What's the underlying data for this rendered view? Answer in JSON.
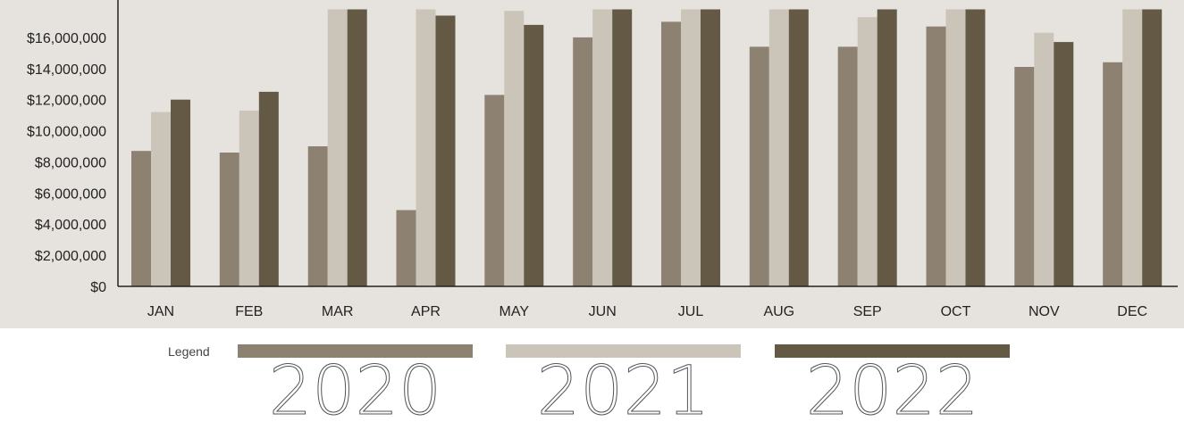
{
  "chart_data": {
    "type": "bar",
    "categories": [
      "JAN",
      "FEB",
      "MAR",
      "APR",
      "MAY",
      "JUN",
      "JUL",
      "AUG",
      "SEP",
      "OCT",
      "NOV",
      "DEC"
    ],
    "series": [
      {
        "name": "2020",
        "color": "#8d8271",
        "values": [
          8700000,
          8600000,
          9000000,
          4900000,
          12300000,
          16000000,
          17000000,
          15400000,
          15400000,
          16700000,
          14100000,
          14400000
        ]
      },
      {
        "name": "2021",
        "color": "#cbc4b9",
        "values": [
          11200000,
          11300000,
          17800000,
          17800000,
          17700000,
          17800000,
          17800000,
          17800000,
          17300000,
          17800000,
          16300000,
          17800000
        ]
      },
      {
        "name": "2022",
        "color": "#635945",
        "values": [
          12000000,
          12500000,
          17800000,
          17400000,
          16800000,
          17800000,
          17800000,
          17800000,
          17800000,
          17800000,
          15700000,
          17800000
        ]
      }
    ],
    "yticks": [
      "$0",
      "$2,000,000",
      "$4,000,000",
      "$6,000,000",
      "$8,000,000",
      "$10,000,000",
      "$12,000,000",
      "$14,000,000",
      "$16,000,000"
    ],
    "ylim": [
      0,
      18000000
    ],
    "grid": false,
    "legend_position": "bottom"
  },
  "legend": {
    "title": "Legend"
  }
}
